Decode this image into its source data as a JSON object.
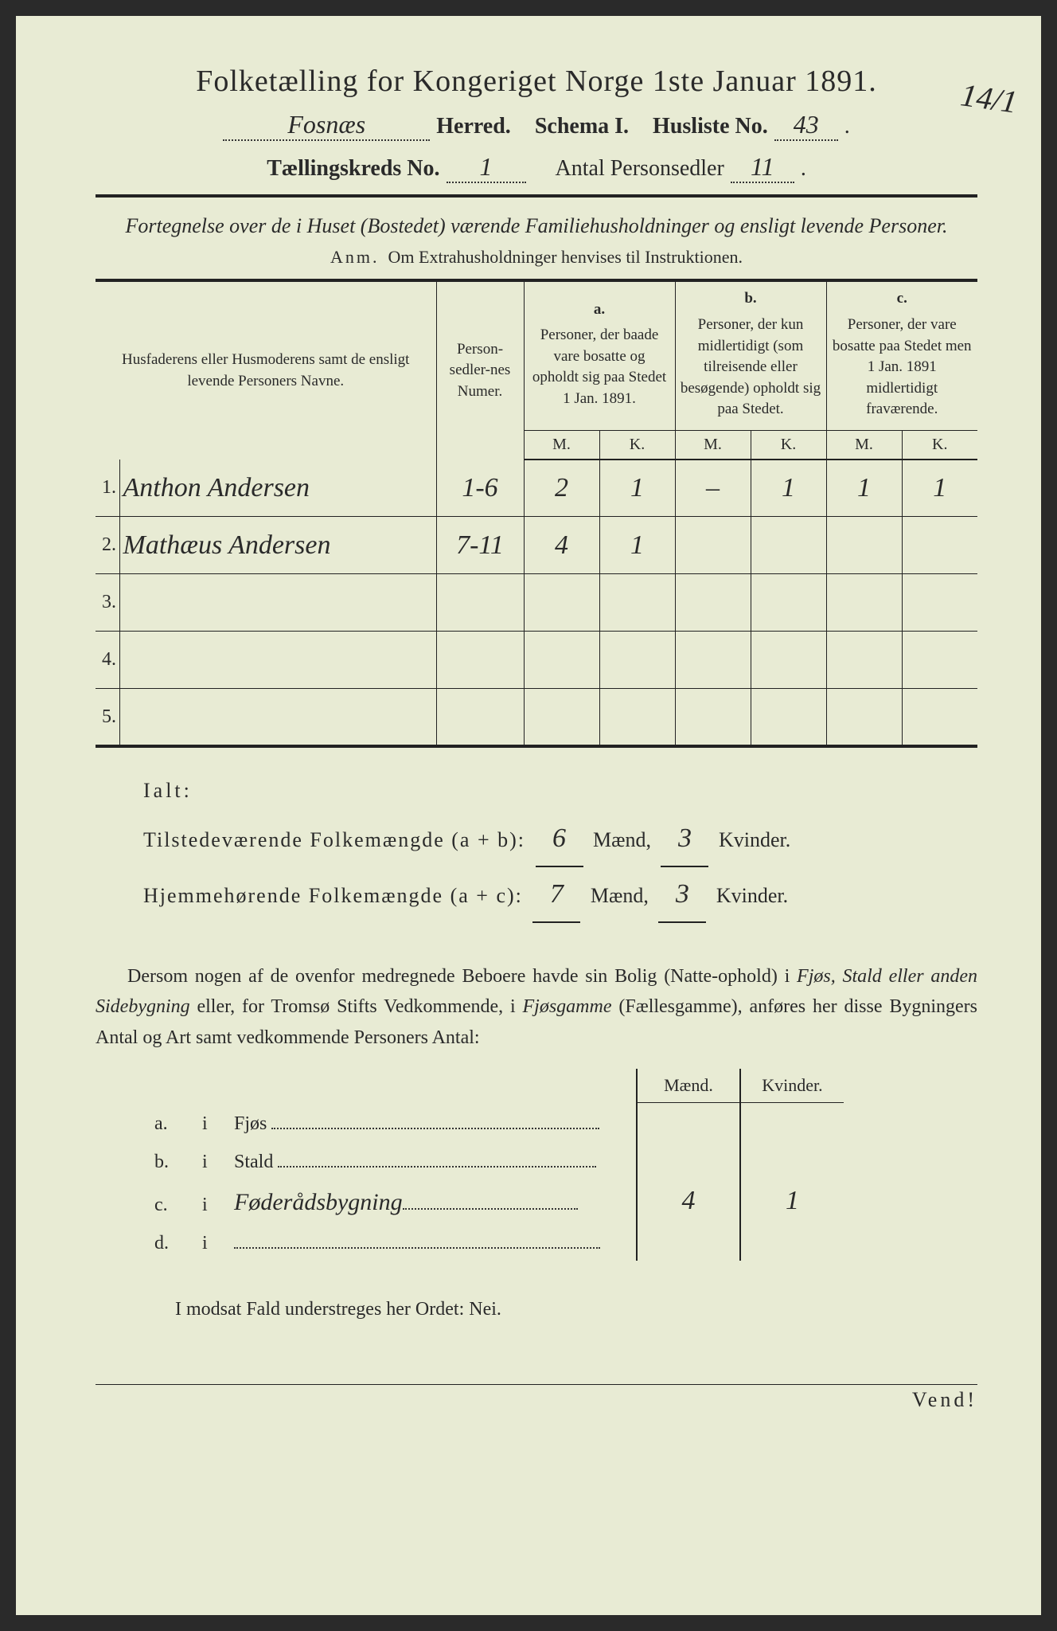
{
  "title": "Folketælling for Kongeriget Norge 1ste Januar 1891.",
  "margin_note": "14/1",
  "header": {
    "herred_value": "Fosnæs",
    "herred_label": "Herred.",
    "schema_label": "Schema I.",
    "husliste_label": "Husliste No.",
    "husliste_value": "43",
    "kreds_label": "Tællingskreds No.",
    "kreds_value": "1",
    "sedler_label": "Antal Personsedler",
    "sedler_value": "11"
  },
  "subtitle": "Fortegnelse over de i Huset (Bostedet) værende Familiehusholdninger og ensligt levende Personer.",
  "anm_label": "Anm.",
  "anm_text": "Om Extrahusholdninger henvises til Instruktionen.",
  "table": {
    "col_name": "Husfaderens eller Husmoderens samt de ensligt levende Personers Navne.",
    "col_num": "Person-sedler-nes Numer.",
    "col_a_letter": "a.",
    "col_a": "Personer, der baade vare bosatte og opholdt sig paa Stedet 1 Jan. 1891.",
    "col_b_letter": "b.",
    "col_b": "Personer, der kun midlertidigt (som tilreisende eller besøgende) opholdt sig paa Stedet.",
    "col_c_letter": "c.",
    "col_c": "Personer, der vare bosatte paa Stedet men 1 Jan. 1891 midlertidigt fraværende.",
    "mk_m": "M.",
    "mk_k": "K.",
    "rows": [
      {
        "n": "1.",
        "name": "Anthon Andersen",
        "num": "1-6",
        "am": "2",
        "ak": "1",
        "bm": "–",
        "bk": "1",
        "cm": "1",
        "ck": "1"
      },
      {
        "n": "2.",
        "name": "Mathæus Andersen",
        "num": "7-11",
        "am": "4",
        "ak": "1",
        "bm": "",
        "bk": "",
        "cm": "",
        "ck": ""
      },
      {
        "n": "3.",
        "name": "",
        "num": "",
        "am": "",
        "ak": "",
        "bm": "",
        "bk": "",
        "cm": "",
        "ck": ""
      },
      {
        "n": "4.",
        "name": "",
        "num": "",
        "am": "",
        "ak": "",
        "bm": "",
        "bk": "",
        "cm": "",
        "ck": ""
      },
      {
        "n": "5.",
        "name": "",
        "num": "",
        "am": "",
        "ak": "",
        "bm": "",
        "bk": "",
        "cm": "",
        "ck": ""
      }
    ],
    "checks": [
      "",
      "",
      "",
      "✓",
      "✓",
      "",
      "",
      "✓",
      "✓",
      "✓"
    ]
  },
  "totals": {
    "ialt": "Ialt:",
    "line1_label": "Tilstedeværende Folkemængde (a + b):",
    "line1_m": "6",
    "line1_k": "3",
    "line2_label": "Hjemmehørende Folkemængde (a + c):",
    "line2_m": "7",
    "line2_k": "3",
    "maend": "Mænd,",
    "kvinder": "Kvinder."
  },
  "para": {
    "text1": "Dersom nogen af de ovenfor medregnede Beboere havde sin Bolig (Natte-ophold) i ",
    "ital1": "Fjøs, Stald eller anden Sidebygning",
    "text2": " eller, for Tromsø Stifts Vedkommende, i ",
    "ital2": "Fjøsgamme",
    "text3": " (Fællesgamme), anføres her disse Bygningers Antal og Art samt vedkommende Personers Antal:"
  },
  "side": {
    "maend": "Mænd.",
    "kvinder": "Kvinder.",
    "rows": [
      {
        "lbl": "a.",
        "i": "i",
        "kind": "Fjøs",
        "val": "",
        "m": "",
        "k": ""
      },
      {
        "lbl": "b.",
        "i": "i",
        "kind": "Stald",
        "val": "",
        "m": "",
        "k": ""
      },
      {
        "lbl": "c.",
        "i": "i",
        "kind": "",
        "val": "Føderådsbygning",
        "m": "4",
        "k": "1"
      },
      {
        "lbl": "d.",
        "i": "i",
        "kind": "",
        "val": "",
        "m": "",
        "k": ""
      }
    ]
  },
  "nei_line": "I modsat Fald understreges her Ordet: Nei.",
  "vend": "Vend!"
}
